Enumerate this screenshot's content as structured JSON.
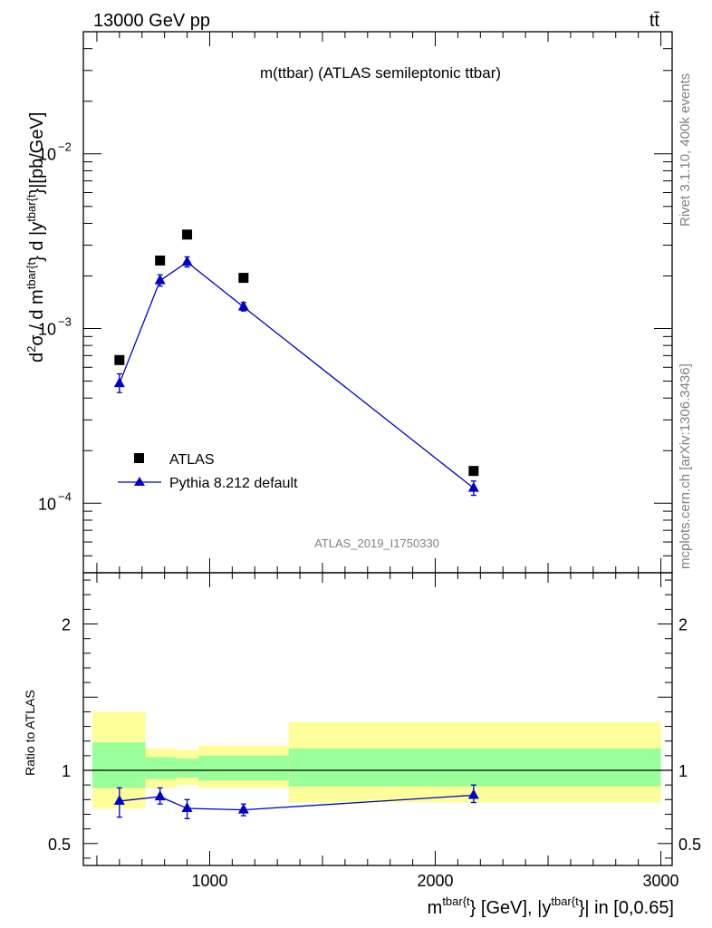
{
  "header": {
    "energy_label": "13000 GeV pp",
    "process_label": "tt̄"
  },
  "side_labels": {
    "rivet": "Rivet 3.1.10,  400k events",
    "mcplots": "mcplots.cern.ch [arXiv:1306.3436]"
  },
  "chart_data": [
    {
      "type": "scatter",
      "panel": "main",
      "title": "m(ttbar) (ATLAS semileptonic ttbar)",
      "ylabel": "d²σ / d m^{tbar{t}} d |y^{tbar{t}}|[pb/GeV]",
      "xlabel": "m^{tbar{t}} [GeV], |y^{tbar{t}}| in [0,0.65]",
      "yscale": "log",
      "xlim": [
        440,
        3050
      ],
      "ylim": [
        4e-05,
        0.05
      ],
      "y_ticks": [
        {
          "value": 0.01,
          "base": "10",
          "exp": "−2"
        },
        {
          "value": 0.001,
          "base": "10",
          "exp": "−3"
        },
        {
          "value": 0.0001,
          "base": "10",
          "exp": "−4"
        }
      ],
      "watermark": "ATLAS_2019_I1750330",
      "series": [
        {
          "name": "ATLAS",
          "color": "#000000",
          "marker": "square",
          "x": [
            600,
            780,
            900,
            1150,
            2170
          ],
          "y": [
            0.00066,
            0.00245,
            0.00345,
            0.00195,
            0.000153
          ]
        },
        {
          "name": "Pythia 8.212 default",
          "color": "#0000cc",
          "marker": "triangle",
          "x": [
            600,
            780,
            900,
            1150,
            2170
          ],
          "y": [
            0.000485,
            0.00188,
            0.0024,
            0.00133,
            0.000122
          ],
          "yerr_low": [
            5.5e-05,
            0.00013,
            0.00015,
            7e-05,
            1.1e-05
          ],
          "yerr_high": [
            6.5e-05,
            0.00015,
            0.00017,
            8e-05,
            1.2e-05
          ]
        }
      ]
    },
    {
      "type": "line",
      "panel": "ratio",
      "ylabel": "Ratio to ATLAS",
      "xlim": [
        440,
        3050
      ],
      "ylim": [
        0.35,
        2.35
      ],
      "y_ticks": [
        {
          "value": 0.5,
          "label": "0.5"
        },
        {
          "value": 1,
          "label": "1"
        },
        {
          "value": 2,
          "label": "2"
        }
      ],
      "x_ticks": [
        {
          "value": 1000,
          "label": "1000"
        },
        {
          "value": 2000,
          "label": "2000"
        },
        {
          "value": 3000,
          "label": "3000"
        }
      ],
      "bands": [
        {
          "x0": 480,
          "x1": 715,
          "y_low": 0.74,
          "y_high": 1.4,
          "inner_low": 0.88,
          "inner_high": 1.19
        },
        {
          "x0": 715,
          "x1": 850,
          "y_low": 0.88,
          "y_high": 1.15,
          "inner_low": 0.94,
          "inner_high": 1.09
        },
        {
          "x0": 850,
          "x1": 950,
          "y_low": 0.9,
          "y_high": 1.14,
          "inner_low": 0.95,
          "inner_high": 1.08
        },
        {
          "x0": 950,
          "x1": 1350,
          "y_low": 0.88,
          "y_high": 1.17,
          "inner_low": 0.93,
          "inner_high": 1.1
        },
        {
          "x0": 1350,
          "x1": 3000,
          "y_low": 0.78,
          "y_high": 1.33,
          "inner_low": 0.89,
          "inner_high": 1.15
        }
      ],
      "series": [
        {
          "name": "Pythia 8.212 default",
          "color": "#0000cc",
          "x": [
            600,
            780,
            900,
            1150,
            2170
          ],
          "y": [
            0.79,
            0.82,
            0.74,
            0.73,
            0.83
          ],
          "yerr_low": [
            0.11,
            0.05,
            0.07,
            0.04,
            0.05
          ],
          "yerr_high": [
            0.09,
            0.06,
            0.06,
            0.04,
            0.07
          ]
        }
      ],
      "band_colors": {
        "outer": "#ffff99",
        "inner": "#99ff99"
      }
    }
  ]
}
